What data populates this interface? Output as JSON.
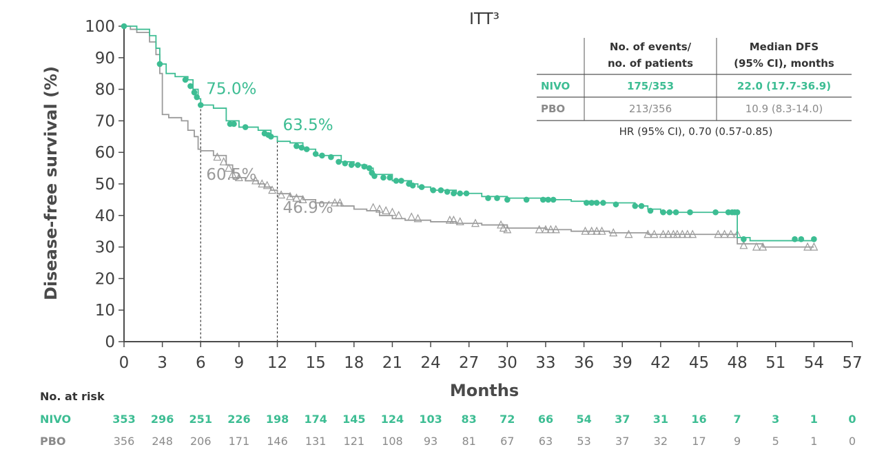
{
  "chart_data": {
    "type": "line",
    "subtype": "kaplan-meier",
    "title": "ITT³",
    "xlabel": "Months",
    "ylabel": "Disease-free survival (%)",
    "xlim": [
      0,
      57
    ],
    "ylim": [
      0,
      100
    ],
    "x_ticks": [
      0,
      3,
      6,
      9,
      12,
      15,
      18,
      21,
      24,
      27,
      30,
      33,
      36,
      39,
      42,
      45,
      48,
      51,
      54,
      57
    ],
    "y_ticks": [
      0,
      10,
      20,
      30,
      40,
      50,
      60,
      70,
      80,
      90,
      100
    ],
    "colors": {
      "nivo": "#3dbd93",
      "pbo": "#9a9a9a",
      "axis": "#4a4a4a"
    },
    "series": [
      {
        "name": "NIVO",
        "marker": "circle",
        "step_points": [
          [
            0,
            100
          ],
          [
            1,
            99
          ],
          [
            2,
            97
          ],
          [
            2.5,
            93
          ],
          [
            2.8,
            88
          ],
          [
            3.3,
            85
          ],
          [
            4,
            84
          ],
          [
            5,
            83
          ],
          [
            5.4,
            80
          ],
          [
            5.8,
            77
          ],
          [
            6,
            75
          ],
          [
            7,
            74
          ],
          [
            8,
            70
          ],
          [
            9,
            68
          ],
          [
            10.5,
            67
          ],
          [
            11.5,
            65
          ],
          [
            12,
            63.5
          ],
          [
            13,
            63
          ],
          [
            14,
            61
          ],
          [
            15,
            59
          ],
          [
            17,
            57
          ],
          [
            18,
            56
          ],
          [
            19,
            55
          ],
          [
            19.5,
            53
          ],
          [
            21,
            51
          ],
          [
            22.5,
            50
          ],
          [
            23,
            49
          ],
          [
            24,
            48
          ],
          [
            26,
            47
          ],
          [
            28,
            46
          ],
          [
            30,
            45.5
          ],
          [
            33,
            45
          ],
          [
            35,
            44.5
          ],
          [
            37,
            44
          ],
          [
            40,
            43
          ],
          [
            41,
            42
          ],
          [
            42,
            41
          ],
          [
            47,
            41
          ],
          [
            48,
            41
          ],
          [
            48,
            33
          ],
          [
            49,
            32
          ],
          [
            54,
            32
          ]
        ],
        "censor_marks": [
          [
            0,
            100
          ],
          [
            2.8,
            88
          ],
          [
            4.8,
            83
          ],
          [
            5.2,
            81
          ],
          [
            5.5,
            79
          ],
          [
            5.7,
            77.5
          ],
          [
            6,
            75
          ],
          [
            8.3,
            69
          ],
          [
            8.6,
            69
          ],
          [
            9.5,
            68
          ],
          [
            11,
            66
          ],
          [
            11.3,
            65.5
          ],
          [
            11.5,
            65
          ],
          [
            13.5,
            62
          ],
          [
            13.9,
            61.5
          ],
          [
            14.3,
            61
          ],
          [
            15,
            59.5
          ],
          [
            15.5,
            59
          ],
          [
            16.2,
            58.5
          ],
          [
            16.8,
            57
          ],
          [
            17.3,
            56.5
          ],
          [
            17.8,
            56
          ],
          [
            18.3,
            56
          ],
          [
            18.8,
            55.5
          ],
          [
            19.2,
            55
          ],
          [
            19.4,
            53.5
          ],
          [
            19.6,
            52.5
          ],
          [
            20.3,
            52
          ],
          [
            20.8,
            52
          ],
          [
            21.3,
            51
          ],
          [
            21.7,
            51
          ],
          [
            22.3,
            50
          ],
          [
            22.6,
            49.5
          ],
          [
            23.3,
            49
          ],
          [
            24.2,
            48
          ],
          [
            24.8,
            48
          ],
          [
            25.3,
            47.5
          ],
          [
            25.8,
            47
          ],
          [
            26.3,
            47
          ],
          [
            26.8,
            47
          ],
          [
            28.5,
            45.5
          ],
          [
            29.2,
            45.5
          ],
          [
            30,
            45
          ],
          [
            31.5,
            45
          ],
          [
            32.8,
            45
          ],
          [
            33.2,
            45
          ],
          [
            33.6,
            45
          ],
          [
            36.2,
            44
          ],
          [
            36.6,
            44
          ],
          [
            37,
            44
          ],
          [
            37.5,
            44
          ],
          [
            38.5,
            43.5
          ],
          [
            40,
            43
          ],
          [
            40.5,
            43
          ],
          [
            41.2,
            41.5
          ],
          [
            42.2,
            41
          ],
          [
            42.7,
            41
          ],
          [
            43.2,
            41
          ],
          [
            44.3,
            41
          ],
          [
            46.3,
            41
          ],
          [
            47.3,
            41
          ],
          [
            47.6,
            41
          ],
          [
            47.8,
            41
          ],
          [
            48,
            41
          ],
          [
            48.5,
            32.5
          ],
          [
            52.5,
            32.5
          ],
          [
            53,
            32.5
          ],
          [
            54,
            32.5
          ]
        ]
      },
      {
        "name": "PBO",
        "marker": "triangle",
        "step_points": [
          [
            0,
            100
          ],
          [
            0.5,
            99
          ],
          [
            1,
            98
          ],
          [
            2,
            95
          ],
          [
            2.5,
            91
          ],
          [
            2.8,
            85
          ],
          [
            3,
            72
          ],
          [
            3.5,
            71
          ],
          [
            4.5,
            70
          ],
          [
            5,
            67
          ],
          [
            5.5,
            65
          ],
          [
            5.8,
            61
          ],
          [
            6,
            60.5
          ],
          [
            7,
            59
          ],
          [
            8,
            56
          ],
          [
            8.5,
            52
          ],
          [
            9.5,
            51
          ],
          [
            10.5,
            50
          ],
          [
            11,
            49
          ],
          [
            11.5,
            48
          ],
          [
            12,
            46.9
          ],
          [
            13,
            46
          ],
          [
            14,
            45
          ],
          [
            15,
            44
          ],
          [
            17,
            43
          ],
          [
            18,
            42
          ],
          [
            19,
            41.5
          ],
          [
            20,
            40
          ],
          [
            21,
            39
          ],
          [
            22,
            38.5
          ],
          [
            24,
            38
          ],
          [
            26,
            37.5
          ],
          [
            28,
            37
          ],
          [
            30,
            36
          ],
          [
            33,
            35.5
          ],
          [
            35,
            35
          ],
          [
            38,
            34.5
          ],
          [
            41,
            34
          ],
          [
            45,
            34
          ],
          [
            48,
            34
          ],
          [
            48,
            31
          ],
          [
            50,
            30
          ],
          [
            54,
            30
          ]
        ],
        "censor_marks": [
          [
            7.3,
            58.5
          ],
          [
            7.8,
            57
          ],
          [
            8.2,
            55
          ],
          [
            8.5,
            53
          ],
          [
            9,
            52
          ],
          [
            10.3,
            51
          ],
          [
            10.8,
            50
          ],
          [
            11.2,
            49.5
          ],
          [
            11.6,
            48
          ],
          [
            12.3,
            46.5
          ],
          [
            13,
            46
          ],
          [
            13.5,
            45.5
          ],
          [
            14,
            45
          ],
          [
            16.5,
            44
          ],
          [
            16.9,
            44
          ],
          [
            19.5,
            42.5
          ],
          [
            20,
            42
          ],
          [
            20.5,
            41.5
          ],
          [
            21,
            41
          ],
          [
            21.5,
            40
          ],
          [
            22.5,
            39.5
          ],
          [
            23,
            39
          ],
          [
            25.5,
            38.5
          ],
          [
            25.8,
            38.5
          ],
          [
            26.3,
            38
          ],
          [
            27.5,
            37.5
          ],
          [
            29.5,
            37
          ],
          [
            29.7,
            36
          ],
          [
            30,
            35.5
          ],
          [
            32.5,
            35.5
          ],
          [
            33,
            35.5
          ],
          [
            33.4,
            35.5
          ],
          [
            33.8,
            35.5
          ],
          [
            36.1,
            35
          ],
          [
            36.6,
            35
          ],
          [
            37,
            35
          ],
          [
            37.4,
            35
          ],
          [
            38.3,
            34.5
          ],
          [
            39.5,
            34
          ],
          [
            41,
            34
          ],
          [
            41.5,
            34
          ],
          [
            42.2,
            34
          ],
          [
            42.6,
            34
          ],
          [
            43,
            34
          ],
          [
            43.3,
            34
          ],
          [
            43.7,
            34
          ],
          [
            44.1,
            34
          ],
          [
            44.5,
            34
          ],
          [
            46.5,
            34
          ],
          [
            47,
            34
          ],
          [
            47.5,
            34
          ],
          [
            48,
            34
          ],
          [
            48.5,
            30.5
          ],
          [
            49.5,
            30
          ],
          [
            50,
            30
          ],
          [
            53.5,
            30
          ],
          [
            54,
            30
          ]
        ]
      }
    ],
    "annotations": [
      {
        "label": "75.0%",
        "series": "NIVO",
        "x": 6,
        "y": 75.0
      },
      {
        "label": "63.5%",
        "series": "NIVO",
        "x": 12,
        "y": 63.5
      },
      {
        "label": "60.5%",
        "series": "PBO",
        "x": 6,
        "y": 60.5
      },
      {
        "label": "46.9%",
        "series": "PBO",
        "x": 12,
        "y": 46.9
      }
    ],
    "reference_lines_x": [
      6,
      12
    ]
  },
  "summary_table": {
    "header_events": [
      "No. of events/",
      "no. of patients"
    ],
    "header_median": [
      "Median DFS",
      "(95% CI), months"
    ],
    "rows": [
      {
        "arm": "NIVO",
        "events": "175/353",
        "median": "22.0 (17.7-36.9)"
      },
      {
        "arm": "PBO",
        "events": "213/356",
        "median": "10.9 (8.3-14.0)"
      }
    ],
    "hr": "HR (95% CI), 0.70 (0.57-0.85)"
  },
  "risk_table": {
    "title": "No. at risk",
    "rows": [
      {
        "arm": "NIVO",
        "values": [
          "353",
          "296",
          "251",
          "226",
          "198",
          "174",
          "145",
          "124",
          "103",
          "83",
          "72",
          "66",
          "54",
          "37",
          "31",
          "16",
          "7",
          "3",
          "1",
          "0"
        ]
      },
      {
        "arm": "PBO",
        "values": [
          "356",
          "248",
          "206",
          "171",
          "146",
          "131",
          "121",
          "108",
          "93",
          "81",
          "67",
          "63",
          "53",
          "37",
          "32",
          "17",
          "9",
          "5",
          "1",
          "0"
        ]
      }
    ]
  }
}
